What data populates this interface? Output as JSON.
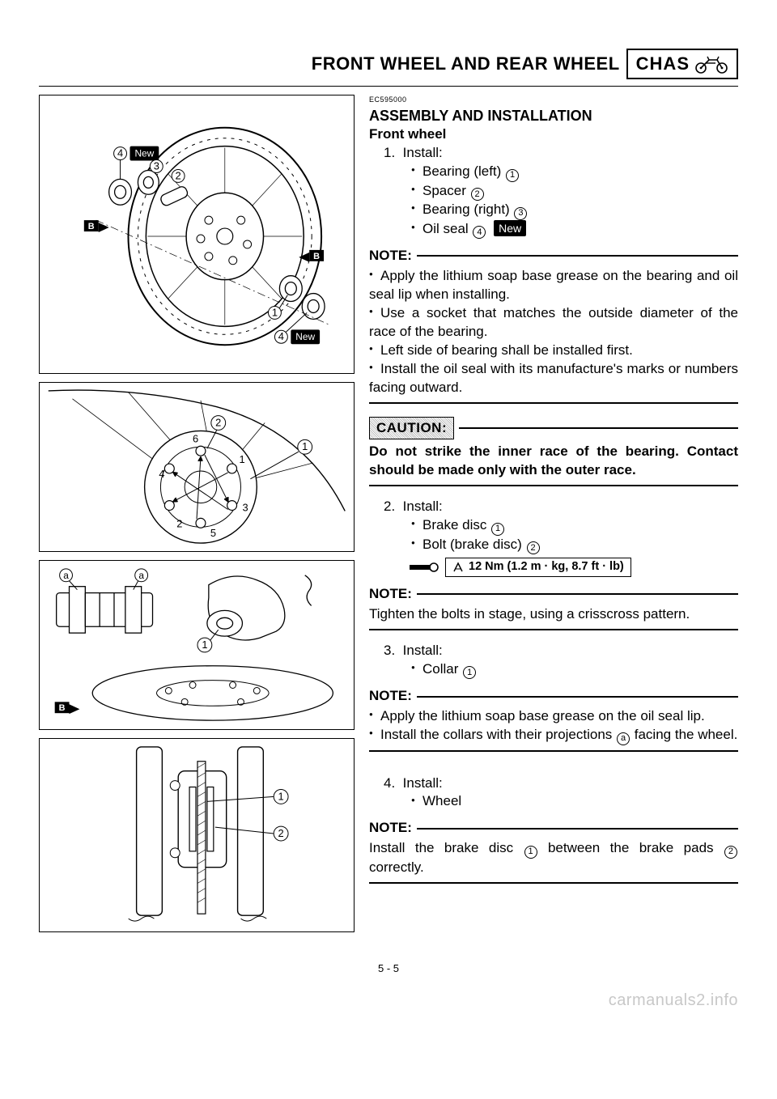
{
  "header": {
    "title": "FRONT WHEEL AND REAR WHEEL",
    "chapter": "CHAS"
  },
  "ec_code": "EC595000",
  "section_title": "ASSEMBLY AND INSTALLATION",
  "subheading": "Front wheel",
  "step1": {
    "num": "1.",
    "label": "Install:",
    "items": [
      {
        "text": "Bearing (left)",
        "ref": "1"
      },
      {
        "text": "Spacer",
        "ref": "2"
      },
      {
        "text": "Bearing (right)",
        "ref": "3"
      },
      {
        "text": "Oil seal",
        "ref": "4",
        "badge": "New"
      }
    ]
  },
  "note1": {
    "label": "NOTE:",
    "items": [
      "Apply the lithium soap base grease on the bearing and oil seal lip when installing.",
      "Use a socket that matches the outside diameter of the race of the bearing.",
      "Left side of bearing shall be installed first.",
      "Install the oil seal with its manufacture's marks or numbers facing outward."
    ]
  },
  "caution": {
    "label": "CAUTION:",
    "text": "Do not strike the inner race of the bearing. Contact should be made only with the outer race."
  },
  "step2": {
    "num": "2.",
    "label": "Install:",
    "items": [
      {
        "text": "Brake disc",
        "ref": "1"
      },
      {
        "text": "Bolt (brake disc)",
        "ref": "2"
      }
    ],
    "torque": "12 Nm (1.2 m · kg, 8.7 ft · lb)"
  },
  "note2": {
    "label": "NOTE:",
    "text": "Tighten the bolts in stage, using a crisscross pattern."
  },
  "step3": {
    "num": "3.",
    "label": "Install:",
    "items": [
      {
        "text": "Collar",
        "ref": "1"
      }
    ]
  },
  "note3": {
    "label": "NOTE:",
    "items_html": [
      "Apply the lithium soap base grease on the oil seal lip.",
      "Install the collars with their projections <span class='circ'>a</span> facing the wheel."
    ]
  },
  "step4": {
    "num": "4.",
    "label": "Install:",
    "items": [
      {
        "text": "Wheel"
      }
    ]
  },
  "note4": {
    "label": "NOTE:",
    "text_html": "Install the brake disc <span class='circ'>1</span> between the brake pads <span class='circ'>2</span> correctly."
  },
  "page_num": "5 - 5",
  "watermark": "carmanuals2.info",
  "figures": {
    "fig1": {
      "new_badge": "New",
      "callouts": [
        "1",
        "2",
        "3",
        "4"
      ],
      "b_markers": [
        "B",
        "B"
      ]
    },
    "fig2": {
      "callouts": [
        "1",
        "2"
      ],
      "bolt_order": [
        "1",
        "2",
        "3",
        "4",
        "5",
        "6"
      ]
    },
    "fig3": {
      "callouts": [
        "1"
      ],
      "proj_markers": [
        "a",
        "a"
      ],
      "b_marker": "B"
    },
    "fig4": {
      "callouts": [
        "1",
        "2"
      ]
    }
  },
  "colors": {
    "text": "#000000",
    "bg": "#ffffff",
    "badge_bg": "#000000",
    "badge_fg": "#ffffff",
    "watermark": "#c8c8c8",
    "caution_hatch": "#bdbdbd"
  }
}
